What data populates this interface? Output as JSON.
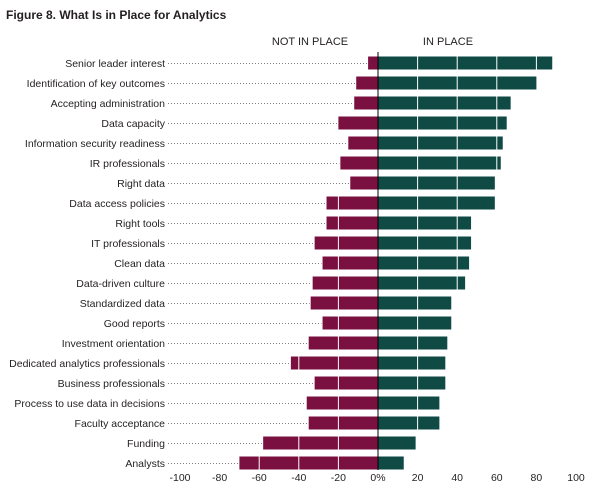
{
  "figure_title": "Figure 8. What Is in Place for Analytics",
  "chart_data": {
    "type": "bar",
    "orientation": "horizontal",
    "stacking": "diverging",
    "section_labels": {
      "left": "NOT IN PLACE",
      "right": "IN PLACE"
    },
    "categories": [
      "Senior leader interest",
      "Identification of key outcomes",
      "Accepting administration",
      "Data capacity",
      "Information security readiness",
      "IR professionals",
      "Right data",
      "Data access policies",
      "Right tools",
      "IT professionals",
      "Clean data",
      "Data-driven culture",
      "Standardized data",
      "Good reports",
      "Investment orientation",
      "Dedicated analytics professionals",
      "Business professionals",
      "Process to use data in decisions",
      "Faculty acceptance",
      "Funding",
      "Analysts"
    ],
    "series": [
      {
        "key": "not_in_place",
        "color": "#7a1040",
        "values": [
          -5,
          -11,
          -12,
          -20,
          -15,
          -19,
          -14,
          -26,
          -26,
          -32,
          -28,
          -33,
          -34,
          -28,
          -35,
          -44,
          -32,
          -36,
          -35,
          -58,
          -70
        ]
      },
      {
        "key": "in_place",
        "color": "#0f4a45",
        "values": [
          88,
          80,
          67,
          65,
          63,
          62,
          59,
          59,
          47,
          47,
          46,
          44,
          37,
          37,
          35,
          34,
          34,
          31,
          31,
          19,
          13
        ]
      }
    ],
    "x_ticks": [
      -100,
      -80,
      -60,
      -40,
      -20,
      0,
      20,
      40,
      60,
      80,
      100
    ],
    "x_tick_labels": [
      "-100",
      "-80",
      "-60",
      "-40",
      "-20",
      "0%",
      "20",
      "40",
      "60",
      "80",
      "100"
    ],
    "xlim": [
      -100,
      100
    ],
    "xlabel": "",
    "ylabel": "",
    "grid": false,
    "leader_lines": true,
    "legend": "none"
  }
}
